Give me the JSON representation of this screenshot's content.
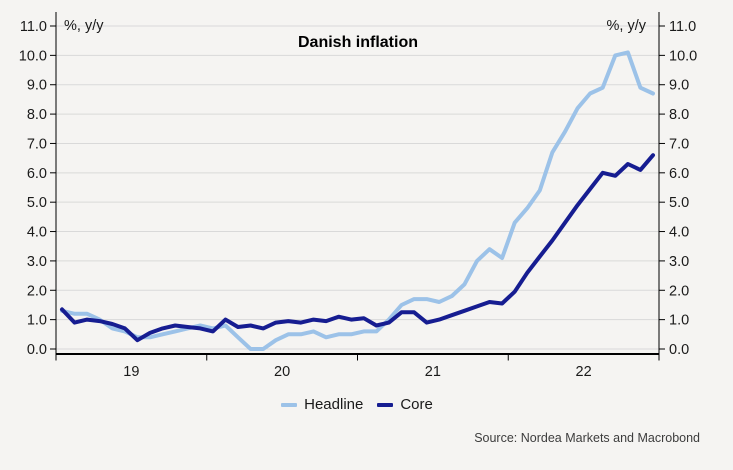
{
  "title": "Danish inflation",
  "unit_left": "%, y/y",
  "unit_right": "%, y/y",
  "source": "Source: Nordea Markets and Macrobond",
  "colors": {
    "background": "#f5f4f2",
    "gridline": "#d9d9d9",
    "axis": "#000000",
    "text": "#1a1a1a",
    "headline": "#9cc2e8",
    "core": "#161d91"
  },
  "legend": [
    {
      "label": "Headline",
      "color": "#9cc2e8"
    },
    {
      "label": "Core",
      "color": "#161d91"
    }
  ],
  "chart_data": {
    "type": "line",
    "title": "Danish inflation",
    "frequency": "monthly",
    "x_tick_labels": [
      "19",
      "20",
      "21",
      "22"
    ],
    "y_ticks": [
      0,
      1,
      2,
      3,
      4,
      5,
      6,
      7,
      8,
      9,
      10,
      11
    ],
    "ylim": [
      0,
      11
    ],
    "y_tick_label_format": "one-decimal",
    "grid": "horizontal",
    "legend_position": "bottom-center",
    "series": [
      {
        "name": "Headline",
        "color": "#9cc2e8",
        "values": [
          1.3,
          1.2,
          1.2,
          1.0,
          0.7,
          0.6,
          0.4,
          0.4,
          0.5,
          0.6,
          0.7,
          0.8,
          0.7,
          0.8,
          0.4,
          0.0,
          0.0,
          0.3,
          0.5,
          0.5,
          0.6,
          0.4,
          0.5,
          0.5,
          0.6,
          0.6,
          1.0,
          1.5,
          1.7,
          1.7,
          1.6,
          1.8,
          2.2,
          3.0,
          3.4,
          3.1,
          4.3,
          4.8,
          5.4,
          6.7,
          7.4,
          8.2,
          8.7,
          8.9,
          10.0,
          10.1,
          8.9,
          8.7
        ]
      },
      {
        "name": "Core",
        "color": "#161d91",
        "values": [
          1.35,
          0.9,
          1.0,
          0.95,
          0.85,
          0.7,
          0.3,
          0.55,
          0.7,
          0.8,
          0.75,
          0.7,
          0.6,
          1.0,
          0.75,
          0.8,
          0.7,
          0.9,
          0.95,
          0.9,
          1.0,
          0.95,
          1.1,
          1.0,
          1.05,
          0.8,
          0.9,
          1.25,
          1.25,
          0.9,
          1.0,
          1.15,
          1.3,
          1.45,
          1.6,
          1.55,
          1.95,
          2.6,
          3.15,
          3.7,
          4.3,
          4.9,
          5.45,
          6.0,
          5.9,
          6.3,
          6.1,
          6.6
        ]
      }
    ]
  }
}
